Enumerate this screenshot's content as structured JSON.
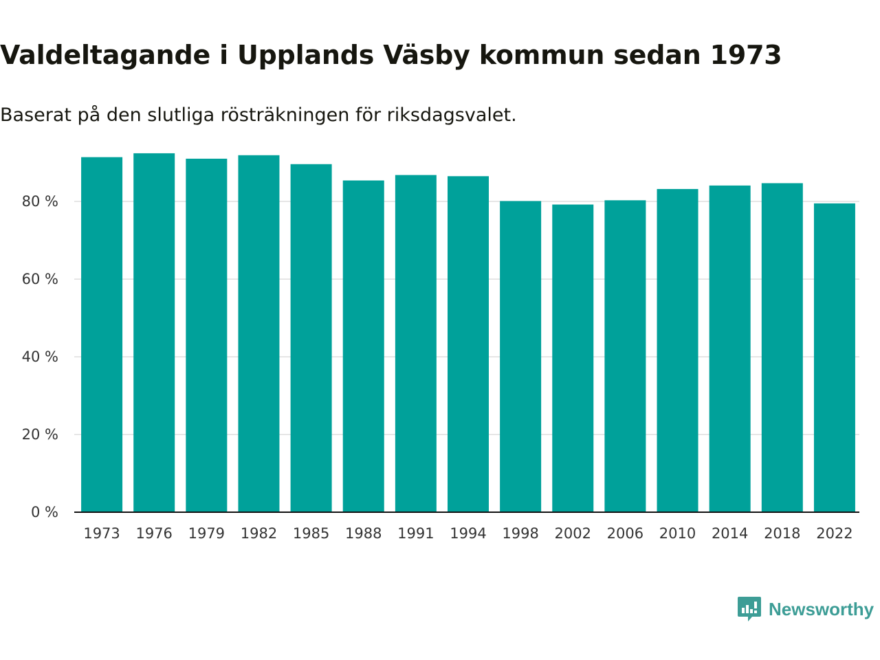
{
  "header": {
    "title": "Valdeltagande i Upplands Väsby kommun sedan 1973",
    "subtitle": "Baserat på den slutliga rösträkningen för riksdagsvalet."
  },
  "brand": {
    "name": "Newsworthy",
    "icon": "newsworthy-logo-icon",
    "color": "#3d9d96"
  },
  "chart_data": {
    "type": "bar",
    "title": "Valdeltagande i Upplands Väsby kommun sedan 1973",
    "subtitle": "Baserat på den slutliga rösträkningen för riksdagsvalet.",
    "xlabel": "",
    "ylabel": "",
    "categories": [
      "1973",
      "1976",
      "1979",
      "1982",
      "1985",
      "1988",
      "1991",
      "1994",
      "1998",
      "2002",
      "2006",
      "2010",
      "2014",
      "2018",
      "2022"
    ],
    "values": [
      91.4,
      92.4,
      91.0,
      91.9,
      89.6,
      85.4,
      86.8,
      86.5,
      80.1,
      79.2,
      80.3,
      83.2,
      84.1,
      84.7,
      79.5
    ],
    "ylim": [
      0,
      95
    ],
    "yticks": [
      0,
      20,
      40,
      60,
      80
    ],
    "ytick_labels": [
      "0 %",
      "20 %",
      "40 %",
      "60 %",
      "80 %"
    ],
    "grid": true,
    "bar_color": "#00a19a"
  }
}
